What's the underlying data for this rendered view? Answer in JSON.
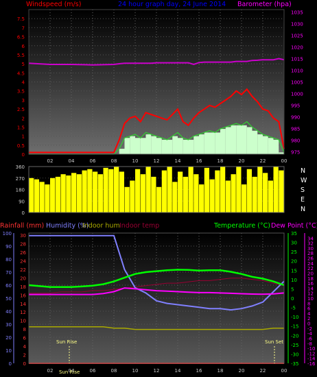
{
  "title": "24 hour graph day, 24 June 2014",
  "x_ticks": [
    "02",
    "04",
    "06",
    "08",
    "10",
    "12",
    "14",
    "16",
    "18",
    "20",
    "22",
    "00"
  ],
  "panel1": {
    "left_label": "Windspeed (m/s)",
    "right_label": "Barometer (hpa)",
    "colors": {
      "wind": "#ff0000",
      "gust_avg": "#33cc33",
      "fill": "#ccffcc",
      "baro": "#cc00cc",
      "label_left": "#ff0000",
      "label_right": "#ff00ff",
      "title": "#0000ff"
    }
  },
  "panel2": {
    "right_compass": [
      "N",
      "W",
      "S",
      "E",
      "N"
    ],
    "colors": {
      "direction": "#ffff00"
    }
  },
  "panel3": {
    "labels": {
      "rainfall": "Rainfall (mm)",
      "humidity": "Humidity (%)",
      "indoor_hum": "Indoor hum",
      "indoor_temp": "Indoor temp",
      "temperature": "Temperature (°C)",
      "dew_point": "Dew Point (°C)"
    },
    "annotations": {
      "sunrise": "Sun Rise",
      "sunset": "Sun Set",
      "sunrise_tick": "Sun Rise"
    },
    "colors": {
      "rain": "#ff3333",
      "humidity": "#8080ff",
      "indoor_hum": "#aaaa00",
      "indoor_temp": "#990033",
      "temperature": "#00ff00",
      "dew_point": "#ff00ff"
    }
  },
  "chart_data": [
    {
      "type": "line",
      "title": "24 hour graph day, 24 June 2014",
      "xlabel": "",
      "ylabel": "Windspeed (m/s)",
      "ylim": [
        0,
        8
      ],
      "y_ticks": [
        0,
        0.5,
        1,
        1.5,
        2,
        2.5,
        3,
        3.5,
        4,
        4.5,
        5,
        5.5,
        6,
        6.5,
        7,
        7.5
      ],
      "y2label": "Barometer (hpa)",
      "y2lim": [
        974,
        1036
      ],
      "y2_ticks": [
        975,
        980,
        985,
        990,
        995,
        1000,
        1005,
        1010,
        1015,
        1020,
        1025,
        1030,
        1035
      ],
      "x_hours": [
        0,
        2,
        4,
        6,
        8,
        8.5,
        9,
        9.5,
        10,
        10.5,
        11,
        11.5,
        12,
        12.5,
        13,
        13.5,
        14,
        14.5,
        15,
        15.5,
        16,
        16.5,
        17,
        17.5,
        18,
        18.5,
        19,
        19.5,
        20,
        20.5,
        21,
        21.5,
        22,
        22.5,
        23,
        23.5,
        24
      ],
      "series": [
        {
          "name": "Windspeed",
          "values": [
            0.1,
            0.1,
            0.1,
            0.1,
            0.1,
            0.8,
            1.7,
            2.0,
            2.1,
            1.8,
            2.3,
            2.2,
            2.1,
            2.0,
            1.9,
            2.2,
            2.5,
            1.8,
            1.6,
            2.0,
            2.3,
            2.5,
            2.7,
            2.6,
            2.8,
            3.0,
            3.2,
            3.5,
            3.3,
            3.6,
            3.2,
            2.9,
            2.5,
            2.4,
            2.0,
            1.8,
            0.3
          ]
        },
        {
          "name": "Average",
          "values": [
            0.0,
            0.0,
            0.0,
            0.0,
            0.0,
            0.3,
            0.9,
            1.0,
            1.1,
            0.9,
            1.2,
            1.1,
            1.0,
            0.9,
            0.8,
            1.0,
            1.2,
            0.9,
            0.8,
            1.0,
            1.1,
            1.2,
            1.3,
            1.2,
            1.4,
            1.5,
            1.6,
            1.7,
            1.6,
            1.8,
            1.5,
            1.3,
            1.1,
            1.0,
            0.9,
            0.8,
            0.1
          ]
        },
        {
          "name": "Barometer",
          "axis": "right",
          "values": [
            1013,
            1012.5,
            1012.5,
            1012.3,
            1012.5,
            1012.8,
            1013,
            1013,
            1013,
            1013,
            1013,
            1013,
            1013.2,
            1013.2,
            1013.2,
            1013.2,
            1013.2,
            1013.2,
            1013.2,
            1012.5,
            1013.3,
            1013.5,
            1013.5,
            1013.5,
            1013.5,
            1013.5,
            1013.5,
            1013.8,
            1013.8,
            1013.8,
            1014.2,
            1014.3,
            1014.5,
            1014.5,
            1014.5,
            1015,
            1014.5
          ]
        }
      ]
    },
    {
      "type": "bar",
      "title": "",
      "ylabel": "Wind direction",
      "ylim": [
        0,
        360
      ],
      "y_ticks": [
        0,
        90,
        180,
        270,
        360
      ],
      "x_hours": [
        0,
        0.5,
        1,
        1.5,
        2,
        2.5,
        3,
        3.5,
        4,
        4.5,
        5,
        5.5,
        6,
        6.5,
        7,
        7.5,
        8,
        8.5,
        9,
        9.5,
        10,
        10.5,
        11,
        11.5,
        12,
        12.5,
        13,
        13.5,
        14,
        14.5,
        15,
        15.5,
        16,
        16.5,
        17,
        17.5,
        18,
        18.5,
        19,
        19.5,
        20,
        20.5,
        21,
        21.5,
        22,
        22.5,
        23,
        23.5,
        24
      ],
      "series": [
        {
          "name": "Direction",
          "values": [
            270,
            260,
            240,
            220,
            270,
            280,
            300,
            290,
            310,
            300,
            330,
            340,
            320,
            300,
            350,
            340,
            360,
            320,
            200,
            250,
            340,
            300,
            360,
            280,
            200,
            330,
            360,
            240,
            320,
            280,
            360,
            300,
            220,
            350,
            260,
            330,
            360,
            250,
            300,
            360,
            220,
            340,
            280,
            360,
            310,
            250,
            360,
            330,
            360
          ]
        }
      ]
    },
    {
      "type": "line",
      "title": "",
      "ylabel": "Humidity (%)",
      "ylim": [
        0,
        100
      ],
      "y_ticks": [
        0,
        10,
        20,
        30,
        40,
        50,
        60,
        70,
        80,
        90,
        100
      ],
      "rain_axis_ticks": [
        0,
        2,
        4,
        6,
        8,
        10,
        12,
        14,
        16,
        18,
        20,
        22,
        24,
        26,
        28,
        30
      ],
      "temp_axis_ticks": [
        -35,
        -30,
        -25,
        -20,
        -15,
        -10,
        -5,
        0,
        5,
        10,
        15,
        20,
        25,
        30,
        35
      ],
      "dew_axis_ticks": [
        -16,
        -14,
        -12,
        -10,
        -8,
        -6,
        -4,
        -2,
        0,
        2,
        4,
        6,
        8,
        10,
        12,
        14,
        16,
        18,
        20,
        22,
        24,
        26,
        28,
        30,
        32,
        34
      ],
      "x_hours": [
        0,
        1,
        2,
        3,
        4,
        5,
        6,
        7,
        8,
        9,
        10,
        11,
        12,
        13,
        14,
        15,
        16,
        17,
        18,
        19,
        20,
        21,
        22,
        23,
        24
      ],
      "series": [
        {
          "name": "Humidity",
          "values": [
            98,
            98,
            98,
            98,
            98,
            98,
            98,
            98,
            98,
            72,
            58,
            54,
            48,
            46,
            45,
            44,
            43,
            42,
            42,
            41,
            42,
            44,
            47,
            55,
            63
          ]
        },
        {
          "name": "Temperature",
          "values": [
            7,
            6.5,
            6,
            6,
            6,
            6.3,
            6.7,
            7.5,
            9,
            11,
            13,
            14,
            14.5,
            15,
            15.3,
            15.2,
            14.8,
            15,
            15,
            14.2,
            13,
            11.5,
            10.5,
            9,
            7
          ]
        },
        {
          "name": "Dew Point",
          "values": [
            2,
            2,
            2,
            2,
            2,
            2,
            2,
            2.5,
            3.5,
            5.5,
            5,
            4.5,
            4,
            3.8,
            3.5,
            3.2,
            3,
            3,
            2.8,
            2.6,
            2.4,
            2.2,
            2.1,
            2.3,
            2.8
          ]
        },
        {
          "name": "Indoor temp",
          "values": [
            12,
            12,
            12,
            12.5,
            12.5,
            12.5,
            13,
            13,
            13.5,
            14,
            14.5,
            15,
            15.5,
            16,
            16,
            16.5,
            17,
            17,
            17.5,
            18,
            18,
            17.5,
            17,
            16,
            15
          ]
        },
        {
          "name": "Indoor hum",
          "values": [
            28,
            28,
            28,
            28,
            28,
            28,
            28,
            28,
            27,
            27,
            26,
            26,
            26,
            26,
            26,
            26,
            26,
            26,
            26,
            26,
            26,
            26,
            26,
            27,
            27
          ]
        },
        {
          "name": "Rainfall",
          "values": [
            0,
            0,
            0,
            0,
            0,
            0,
            0,
            0,
            0,
            0,
            0,
            0,
            0,
            0,
            0,
            0,
            0,
            0,
            0,
            0,
            0,
            0,
            0,
            0,
            0
          ]
        }
      ]
    }
  ]
}
